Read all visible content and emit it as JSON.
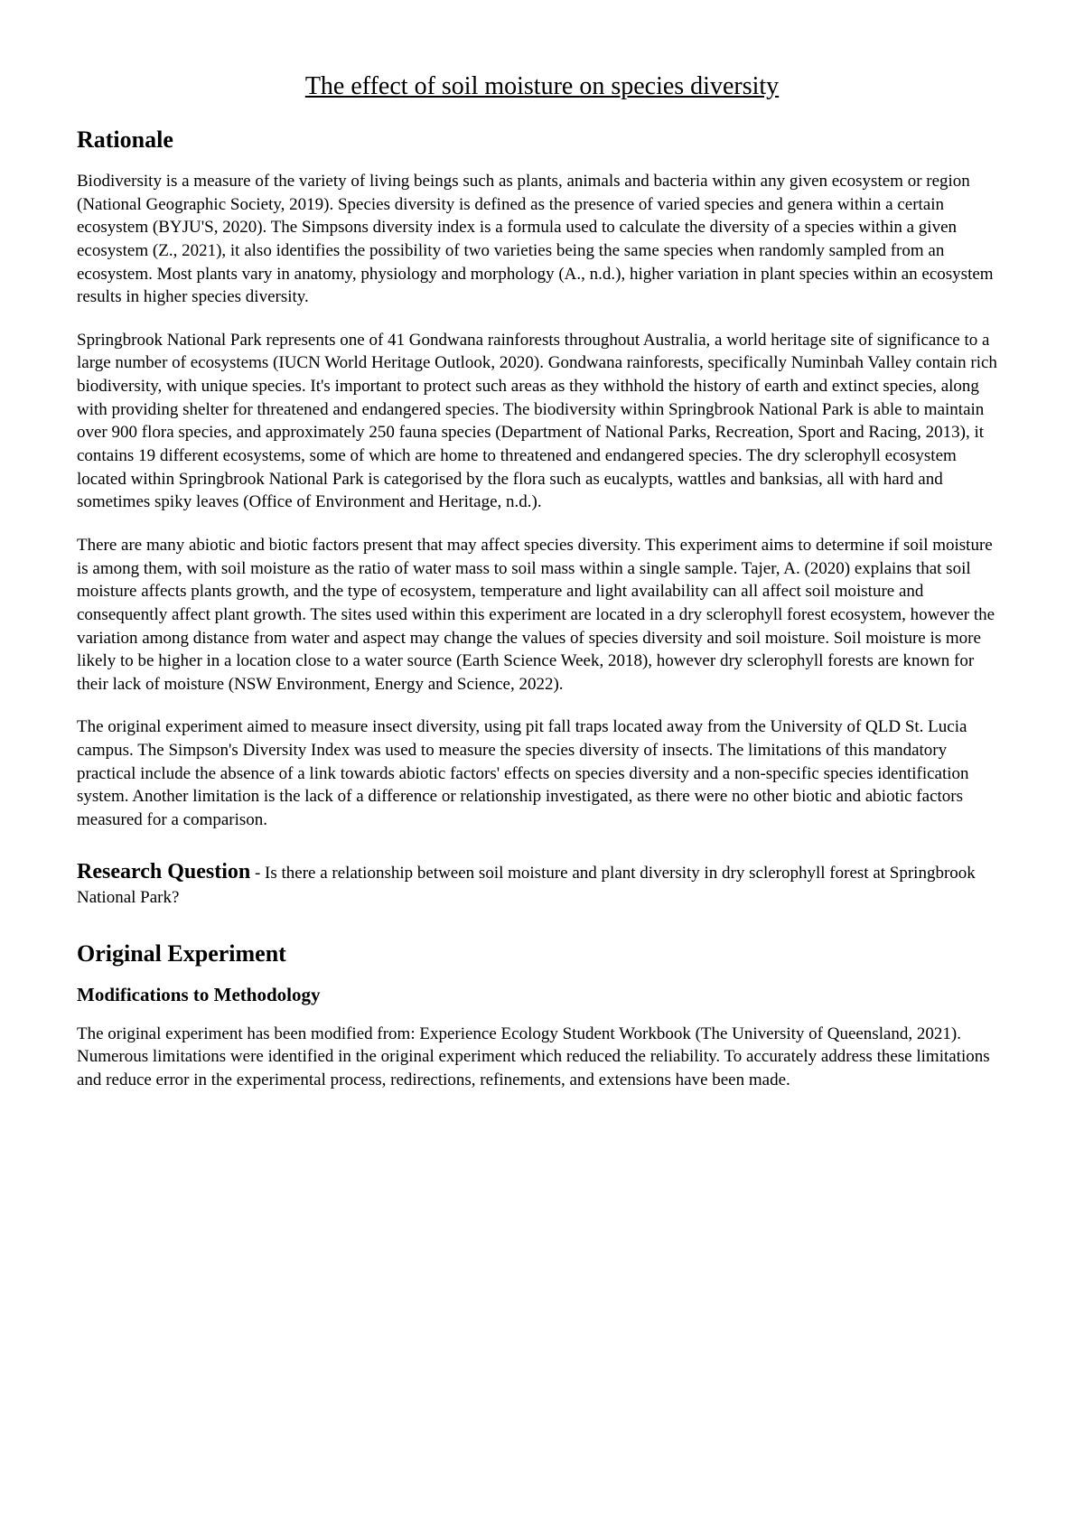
{
  "title": "The effect of soil moisture on species diversity",
  "rationale": {
    "heading": "Rationale",
    "p1": "Biodiversity is a measure of the variety of living beings such as plants, animals and bacteria within any given ecosystem or region (National Geographic Society, 2019). Species diversity is defined as the presence of varied species and genera within a certain ecosystem (BYJU'S, 2020). The Simpsons diversity index is a formula used to calculate the diversity of a species within a given ecosystem (Z., 2021), it also identifies the possibility of two varieties being the same species when randomly sampled from an ecosystem. Most plants vary in anatomy, physiology and morphology (A., n.d.), higher variation in plant species within an ecosystem results in higher species diversity.",
    "p2": "Springbrook National Park represents one of 41 Gondwana rainforests throughout Australia, a world heritage site of significance to a large number of ecosystems (IUCN World Heritage Outlook, 2020). Gondwana rainforests, specifically Numinbah Valley contain rich biodiversity, with unique species. It's important to protect such areas as they withhold the history of earth and extinct species, along with providing shelter for threatened and endangered species. The biodiversity within Springbrook National Park is able to maintain over 900 flora species, and approximately 250 fauna species (Department of National Parks, Recreation, Sport and Racing, 2013), it contains 19 different ecosystems, some of which are home to threatened and endangered species. The dry sclerophyll ecosystem located within Springbrook National Park is categorised by the flora such as eucalypts, wattles and banksias, all with hard and sometimes spiky leaves (Office of Environment and Heritage, n.d.).",
    "p3": "There are many abiotic and biotic factors present that may affect species diversity. This experiment aims to determine if soil moisture is among them, with soil moisture as the ratio of water mass to soil mass within a single sample. Tajer, A. (2020) explains that soil moisture affects plants growth, and the type of ecosystem, temperature and light availability can all affect soil moisture and consequently affect plant growth. The sites used within this experiment are located in a dry sclerophyll forest ecosystem, however the variation among distance from water and aspect may change the values of species diversity and soil moisture. Soil moisture is more likely to be higher in a location close to a water source (Earth Science Week, 2018), however dry sclerophyll forests are known for their lack of moisture (NSW Environment, Energy and Science, 2022).",
    "p4": "The original experiment aimed to measure insect diversity, using pit fall traps located away from the University of QLD St. Lucia campus. The Simpson's Diversity Index was used to measure the species diversity of insects. The limitations of this mandatory practical include the absence of a link towards abiotic factors' effects on species diversity and a non-specific species identification system. Another limitation is the lack of a difference or relationship investigated, as there were no other biotic and abiotic factors measured for a comparison."
  },
  "research_question": {
    "label": "Research Question",
    "text": " - Is there a relationship between soil moisture and plant diversity in dry sclerophyll forest at Springbrook National Park?"
  },
  "original_experiment": {
    "heading": "Original Experiment",
    "subheading": "Modifications to Methodology",
    "p1": "The original experiment has been modified from: Experience Ecology Student Workbook (The University of Queensland, 2021). Numerous limitations were identified in the original experiment which reduced the reliability. To accurately address these limitations and reduce error in the experimental process, redirections, refinements, and extensions have been made."
  }
}
